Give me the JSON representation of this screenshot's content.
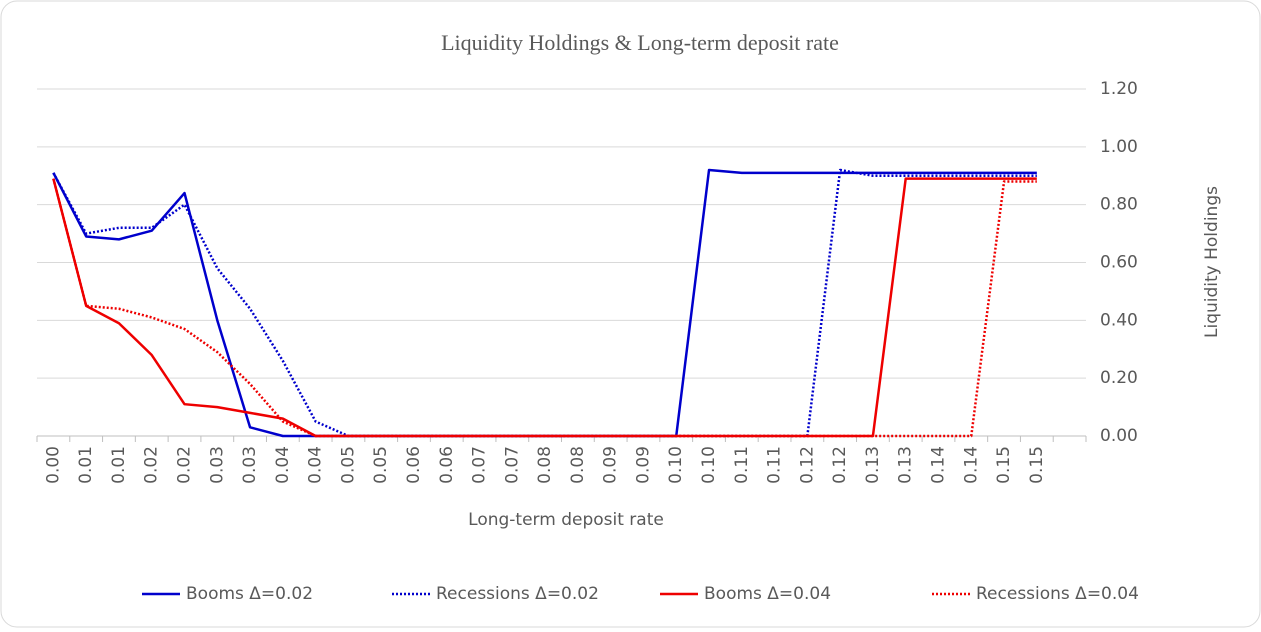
{
  "chart_data": {
    "type": "line",
    "title": "Liquidity Holdings & Long-term deposit rate",
    "x_label": "Long-term deposit rate",
    "y_label": "Liquidity Holdings",
    "categories": [
      "0.00",
      "0.01",
      "0.01",
      "0.02",
      "0.02",
      "0.03",
      "0.03",
      "0.04",
      "0.04",
      "0.05",
      "0.05",
      "0.06",
      "0.06",
      "0.07",
      "0.07",
      "0.08",
      "0.08",
      "0.09",
      "0.09",
      "0.10",
      "0.10",
      "0.11",
      "0.11",
      "0.12",
      "0.12",
      "0.13",
      "0.13",
      "0.14",
      "0.14",
      "0.15",
      "0.15",
      null
    ],
    "series": [
      {
        "name": "Booms Δ=0.02",
        "color": "#0000cc",
        "dash": "solid",
        "values": [
          0.91,
          0.69,
          0.68,
          0.71,
          0.84,
          0.4,
          0.03,
          0,
          0,
          0,
          0,
          0,
          0,
          0,
          0,
          0,
          0,
          0,
          0,
          0,
          0.92,
          0.91,
          0.91,
          0.91,
          0.91,
          0.91,
          0.91,
          0.91,
          0.91,
          0.91,
          0.91,
          null
        ]
      },
      {
        "name": "Recessions Δ=0.02",
        "color": "#0000cc",
        "dash": "dotted",
        "values": [
          0.91,
          0.7,
          0.72,
          0.72,
          0.8,
          0.58,
          0.44,
          0.26,
          0.05,
          0,
          0,
          0,
          0,
          0,
          0,
          0,
          0,
          0,
          0,
          0,
          0,
          0,
          0,
          0,
          0.92,
          0.9,
          0.9,
          0.9,
          0.9,
          0.9,
          0.9,
          null
        ]
      },
      {
        "name": "Booms Δ=0.04",
        "color": "#ee0000",
        "dash": "solid",
        "values": [
          0.89,
          0.45,
          0.39,
          0.28,
          0.11,
          0.1,
          0.08,
          0.06,
          0,
          0,
          0,
          0,
          0,
          0,
          0,
          0,
          0,
          0,
          0,
          0,
          0,
          0,
          0,
          0,
          0,
          0,
          0.89,
          0.89,
          0.89,
          0.89,
          0.89,
          null
        ]
      },
      {
        "name": "Recessions Δ=0.04",
        "color": "#ee0000",
        "dash": "dotted",
        "values": [
          0.89,
          0.45,
          0.44,
          0.41,
          0.37,
          0.29,
          0.18,
          0.05,
          0,
          0,
          0,
          0,
          0,
          0,
          0,
          0,
          0,
          0,
          0,
          0,
          0,
          0,
          0,
          0,
          0,
          0,
          0,
          0,
          0,
          0.88,
          0.88,
          null
        ]
      }
    ],
    "ylim": [
      0,
      1.2
    ],
    "yticks": [
      {
        "value": 0,
        "label": "0.00"
      },
      {
        "value": 0.2,
        "label": "0.20"
      },
      {
        "value": 0.4,
        "label": "0.40"
      },
      {
        "value": 0.6,
        "label": "0.60"
      },
      {
        "value": 0.8,
        "label": "0.80"
      },
      {
        "value": 1,
        "label": "1.00"
      },
      {
        "value": 1.2,
        "label": "1.20"
      }
    ],
    "grid": true,
    "legend": "bottom"
  }
}
